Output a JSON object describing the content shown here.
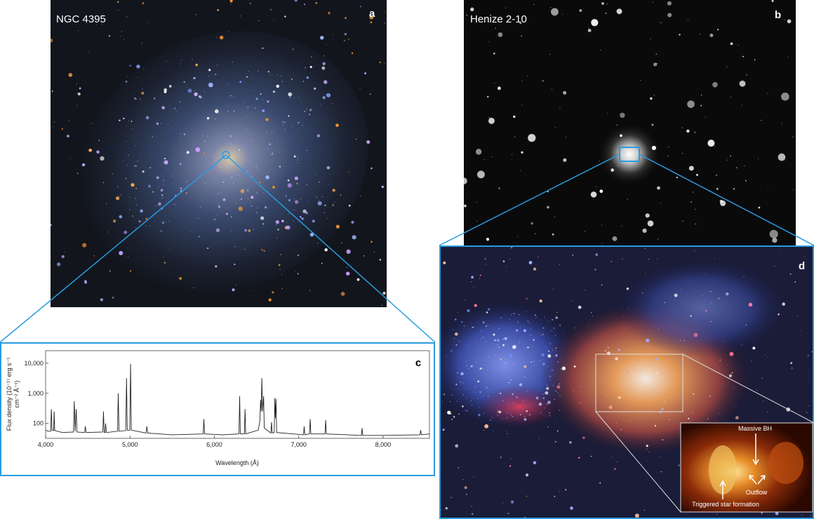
{
  "panels": {
    "a": {
      "title": "NGC 4395",
      "label": "a"
    },
    "b": {
      "title": "Henize 2-10",
      "label": "b"
    },
    "d": {
      "label": "d"
    }
  },
  "inset": {
    "labels": [
      "Massive BH",
      "Outflow",
      "Triggered star formation"
    ]
  },
  "chart_data": {
    "type": "line",
    "label": "c",
    "xlabel": "Wavelength (Å)",
    "ylabel": [
      "Flux density (10⁻¹⁷ erg s⁻¹",
      "cm⁻² Å⁻¹)"
    ],
    "color": "#222222",
    "log_y": true,
    "x": [
      4000,
      4030,
      4060,
      4068,
      4076,
      4095,
      4101,
      4108,
      4200,
      4330,
      4340,
      4350,
      4363,
      4372,
      4462,
      4471,
      4480,
      4678,
      4686,
      4694,
      4705,
      4711,
      4720,
      4852,
      4861,
      4870,
      4950,
      4959,
      4968,
      4998,
      5007,
      5016,
      5190,
      5200,
      5210,
      5500,
      5868,
      5876,
      5884,
      6100,
      6292,
      6300,
      6308,
      6356,
      6364,
      6372,
      6520,
      6540,
      6548,
      6556,
      6563,
      6572,
      6584,
      6592,
      6670,
      6678,
      6686,
      6710,
      6717,
      6724,
      6731,
      6739,
      7057,
      7065,
      7073,
      7128,
      7136,
      7144,
      7312,
      7320,
      7328,
      7743,
      7751,
      7759,
      8000,
      8438,
      8446,
      8454,
      8550
    ],
    "values": [
      60,
      55,
      55,
      300,
      60,
      58,
      250,
      58,
      50,
      52,
      550,
      55,
      300,
      52,
      50,
      80,
      50,
      52,
      250,
      50,
      50,
      100,
      50,
      55,
      1000,
      55,
      58,
      3200,
      60,
      60,
      9500,
      60,
      48,
      80,
      48,
      42,
      45,
      140,
      45,
      42,
      45,
      800,
      45,
      45,
      300,
      45,
      60,
      120,
      600,
      250,
      3200,
      250,
      800,
      70,
      48,
      110,
      48,
      50,
      700,
      150,
      650,
      50,
      42,
      80,
      42,
      45,
      140,
      45,
      45,
      130,
      45,
      40,
      70,
      40,
      40,
      42,
      60,
      42,
      45
    ],
    "xlim": [
      4000,
      8550
    ],
    "xticks": [
      {
        "value": 4000,
        "label": "4,000"
      },
      {
        "value": 5000,
        "label": "5,000"
      },
      {
        "value": 6000,
        "label": "6,000"
      },
      {
        "value": 7000,
        "label": "7,000"
      },
      {
        "value": 8000,
        "label": "8,000"
      }
    ],
    "ylim": [
      32,
      26000
    ],
    "yticks": [
      100,
      {
        "value": 1000,
        "label": "1,000"
      },
      {
        "value": 10000,
        "label": "10,000"
      }
    ]
  }
}
